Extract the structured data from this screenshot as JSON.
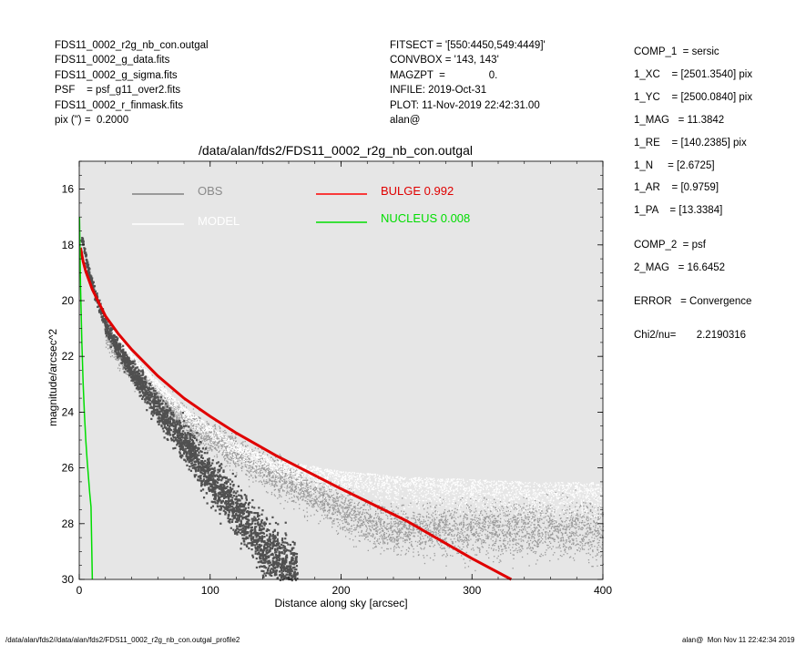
{
  "header_left": [
    "FDS11_0002_r2g_nb_con.outgal",
    "FDS11_0002_g_data.fits",
    "FDS11_0002_g_sigma.fits",
    "PSF    = psf_g11_over2.fits",
    "FDS11_0002_r_finmask.fits",
    "pix (\") =  0.2000"
  ],
  "header_mid": [
    "FITSECT = '[550:4450,549:4449]'",
    "CONVBOX = '143, 143'",
    "MAGZPT  =               0.",
    "INFILE: 2019-Oct-31",
    "PLOT: 11-Nov-2019 22:42:31.00",
    "alan@"
  ],
  "params": {
    "comp1": "COMP_1  = sersic",
    "xc": "1_XC    = [2501.3540] pix",
    "yc": "1_YC    = [2500.0840] pix",
    "mag": "1_MAG   = 11.3842",
    "re": "1_RE    = [140.2385] pix",
    "n": "1_N     = [2.6725]",
    "ar": "1_AR    = [0.9759]",
    "pa": "1_PA    = [13.3384]",
    "comp2": "COMP_2  = psf",
    "mag2": "2_MAG   = 16.6452",
    "error": "ERROR   = Convergence",
    "chi2": "Chi2/nu=       2.2190316"
  },
  "footer": {
    "left": "/data/alan/fds2//data/alan/fds2/FDS11_0002_r2g_nb_con.outgal_profile2",
    "right": "alan@  Mon Nov 11 22:42:34 2019"
  },
  "chart_data": {
    "type": "scatter",
    "title": "/data/alan/fds2/FDS11_0002_r2g_nb_con.outgal",
    "xlabel": "Distance along sky [arcsec]",
    "ylabel": "magnitude/arcsec^2",
    "xlim": [
      0,
      400
    ],
    "ylim": [
      30,
      15
    ],
    "y_inverted": true,
    "xticks": [
      0,
      100,
      200,
      300,
      400
    ],
    "yticks": [
      16,
      18,
      20,
      22,
      24,
      26,
      28,
      30
    ],
    "background": "#e6e6e6",
    "legend": [
      {
        "name": "OBS",
        "color": "#808080"
      },
      {
        "name": "MODEL",
        "color": "#ffffff"
      },
      {
        "name": "BULGE  0.992",
        "color": "#ff0000"
      },
      {
        "name": "NUCLEUS  0.008",
        "color": "#00dd00"
      }
    ],
    "series": [
      {
        "name": "OBS",
        "color": "#555555",
        "x": [
          2,
          5,
          10,
          15,
          20,
          30,
          40,
          50,
          60,
          80,
          100,
          120,
          140,
          160
        ],
        "y": [
          17.8,
          18.6,
          19.5,
          20.2,
          20.9,
          21.8,
          22.5,
          23.2,
          23.9,
          25.1,
          26.4,
          27.6,
          28.8,
          29.8
        ]
      },
      {
        "name": "MODEL",
        "color": "#ffffff",
        "x": [
          2,
          5,
          10,
          20,
          40,
          60,
          80,
          100,
          120,
          150,
          200,
          250,
          300,
          350,
          400
        ],
        "y": [
          18.0,
          18.7,
          19.5,
          20.6,
          22.0,
          23.0,
          23.9,
          24.6,
          25.2,
          25.8,
          26.2,
          26.4,
          26.5,
          26.6,
          26.6
        ]
      },
      {
        "name": "BULGE  0.992",
        "color": "#e00000",
        "x": [
          1,
          3,
          5,
          10,
          20,
          30,
          40,
          60,
          80,
          100,
          120,
          150,
          200,
          250,
          300,
          330
        ],
        "y": [
          18.1,
          18.6,
          18.95,
          19.6,
          20.55,
          21.2,
          21.75,
          22.7,
          23.5,
          24.15,
          24.75,
          25.55,
          26.75,
          27.9,
          29.25,
          30.0
        ]
      },
      {
        "name": "NUCLEUS  0.008",
        "color": "#00dd00",
        "x": [
          0.2,
          1,
          2,
          3,
          4,
          5,
          6,
          7,
          8,
          9,
          10
        ],
        "y": [
          17.0,
          19.5,
          21.5,
          23.0,
          24.1,
          25.0,
          25.7,
          26.3,
          26.9,
          27.4,
          30.0
        ]
      }
    ]
  }
}
